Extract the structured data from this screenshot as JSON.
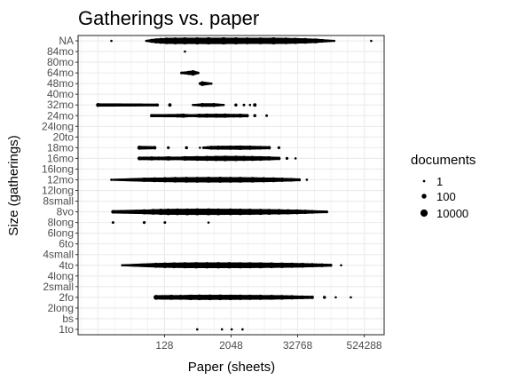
{
  "chart_data": {
    "type": "scatter",
    "title": "Gatherings vs. paper",
    "xlabel": "Paper (sheets)",
    "ylabel": "Size (gatherings)",
    "x_scale": "log2",
    "xlim": [
      3.5,
      1200000
    ],
    "x_ticks": [
      128,
      2048,
      32768,
      524288
    ],
    "x_tick_labels": [
      "128",
      "2048",
      "32768",
      "524288"
    ],
    "categories": [
      "1to",
      "bs",
      "2long",
      "2fo",
      "2small",
      "4long",
      "4to",
      "4small",
      "6to",
      "6long",
      "8long",
      "8vo",
      "8small",
      "12long",
      "12mo",
      "16long",
      "16mo",
      "18mo",
      "20to",
      "24long",
      "24mo",
      "32mo",
      "40mo",
      "48mo",
      "64mo",
      "80mo",
      "84mo",
      "NA"
    ],
    "grid": true,
    "legend": {
      "title": "documents",
      "position": "right",
      "items": [
        {
          "label": "1",
          "value": 1
        },
        {
          "label": "100",
          "value": 100
        },
        {
          "label": "10000",
          "value": 10000
        }
      ]
    },
    "series": [
      {
        "category": "NA",
        "points": [
          [
            14,
            1
          ],
          [
            60,
            1
          ],
          [
            75,
            30
          ],
          [
            90,
            300
          ],
          [
            110,
            1500
          ],
          [
            140,
            6000
          ],
          [
            200,
            12000
          ],
          [
            300,
            15000
          ],
          [
            500,
            18000
          ],
          [
            800,
            20000
          ],
          [
            1500,
            20000
          ],
          [
            2500,
            15000
          ],
          [
            4000,
            10000
          ],
          [
            7000,
            8000
          ],
          [
            12000,
            15000
          ],
          [
            20000,
            6000
          ],
          [
            30000,
            3000
          ],
          [
            45000,
            1000
          ],
          [
            70000,
            200
          ],
          [
            90000,
            20
          ],
          [
            150000,
            1
          ],
          [
            700000,
            1
          ]
        ]
      },
      {
        "category": "84mo",
        "points": [
          [
            300,
            1
          ]
        ]
      },
      {
        "category": "64mo",
        "points": [
          [
            260,
            2
          ],
          [
            350,
            40
          ],
          [
            420,
            600
          ],
          [
            520,
            2
          ]
        ]
      },
      {
        "category": "48mo",
        "points": [
          [
            560,
            2
          ],
          [
            620,
            150
          ],
          [
            900,
            1
          ]
        ]
      },
      {
        "category": "32mo",
        "points": [
          [
            8,
            20
          ],
          [
            95,
            5
          ],
          [
            160,
            10
          ],
          [
            420,
            1
          ],
          [
            620,
            25
          ],
          [
            1000,
            30
          ],
          [
            1500,
            1
          ],
          [
            2500,
            5
          ],
          [
            3500,
            2
          ],
          [
            4500,
            1
          ],
          [
            5500,
            10
          ]
        ]
      },
      {
        "category": "24mo",
        "points": [
          [
            75,
            8
          ],
          [
            220,
            20
          ],
          [
            280,
            50
          ],
          [
            380,
            5
          ],
          [
            550,
            30
          ],
          [
            750,
            40
          ],
          [
            1100,
            50
          ],
          [
            1600,
            60
          ],
          [
            2300,
            20
          ],
          [
            3000,
            30
          ],
          [
            4000,
            10
          ],
          [
            5500,
            5
          ],
          [
            9000,
            2
          ]
        ]
      },
      {
        "category": "18mo",
        "points": [
          [
            45,
            40
          ],
          [
            85,
            10
          ],
          [
            150,
            3
          ],
          [
            320,
            5
          ],
          [
            560,
            1
          ],
          [
            650,
            2
          ],
          [
            900,
            30
          ],
          [
            1200,
            50
          ],
          [
            2000,
            80
          ],
          [
            3000,
            100
          ],
          [
            4500,
            60
          ],
          [
            7000,
            20
          ],
          [
            10000,
            10
          ],
          [
            15000,
            3
          ]
        ]
      },
      {
        "category": "16mo",
        "points": [
          [
            45,
            20
          ],
          [
            75,
            40
          ],
          [
            100,
            20
          ],
          [
            150,
            60
          ],
          [
            220,
            20
          ],
          [
            300,
            100
          ],
          [
            500,
            200
          ],
          [
            750,
            300
          ],
          [
            1100,
            500
          ],
          [
            1600,
            800
          ],
          [
            2500,
            600
          ],
          [
            3500,
            400
          ],
          [
            5000,
            300
          ],
          [
            7000,
            150
          ],
          [
            10000,
            60
          ],
          [
            15000,
            10
          ],
          [
            21000,
            3
          ],
          [
            30000,
            1
          ]
        ]
      },
      {
        "category": "12mo",
        "points": [
          [
            14,
            1
          ],
          [
            55,
            80
          ],
          [
            85,
            200
          ],
          [
            130,
            400
          ],
          [
            200,
            800
          ],
          [
            320,
            1200
          ],
          [
            500,
            1500
          ],
          [
            800,
            2000
          ],
          [
            1300,
            2000
          ],
          [
            2000,
            1500
          ],
          [
            3000,
            1200
          ],
          [
            5000,
            800
          ],
          [
            8000,
            400
          ],
          [
            12000,
            200
          ],
          [
            17000,
            60
          ],
          [
            25000,
            20
          ],
          [
            35000,
            5
          ],
          [
            48000,
            1
          ]
        ]
      },
      {
        "category": "8vo",
        "points": [
          [
            15,
            15
          ],
          [
            55,
            300
          ],
          [
            80,
            1200
          ],
          [
            110,
            3000
          ],
          [
            150,
            6000
          ],
          [
            220,
            8000
          ],
          [
            330,
            10000
          ],
          [
            500,
            12000
          ],
          [
            800,
            12000
          ],
          [
            1200,
            10000
          ],
          [
            2000,
            8000
          ],
          [
            3000,
            6000
          ],
          [
            4500,
            4000
          ],
          [
            7000,
            2500
          ],
          [
            10000,
            1500
          ],
          [
            15000,
            800
          ],
          [
            22000,
            400
          ],
          [
            32000,
            200
          ],
          [
            45000,
            60
          ],
          [
            60000,
            20
          ],
          [
            110000,
            3
          ]
        ]
      },
      {
        "category": "8long",
        "points": [
          [
            15,
            2
          ],
          [
            55,
            3
          ],
          [
            130,
            2
          ],
          [
            800,
            1
          ]
        ]
      },
      {
        "category": "4to",
        "points": [
          [
            22,
            1
          ],
          [
            90,
            300
          ],
          [
            130,
            800
          ],
          [
            190,
            1500
          ],
          [
            300,
            2500
          ],
          [
            480,
            3500
          ],
          [
            750,
            4000
          ],
          [
            1200,
            4000
          ],
          [
            1900,
            3500
          ],
          [
            3000,
            3000
          ],
          [
            4500,
            2500
          ],
          [
            7000,
            2000
          ],
          [
            11000,
            1200
          ],
          [
            17000,
            800
          ],
          [
            26000,
            400
          ],
          [
            40000,
            200
          ],
          [
            60000,
            60
          ],
          [
            90000,
            20
          ],
          [
            130000,
            5
          ],
          [
            200000,
            1
          ]
        ]
      },
      {
        "category": "2fo",
        "points": [
          [
            90,
            200
          ],
          [
            170,
            400
          ],
          [
            250,
            300
          ],
          [
            380,
            800
          ],
          [
            550,
            1000
          ],
          [
            850,
            1000
          ],
          [
            1300,
            900
          ],
          [
            2000,
            800
          ],
          [
            3000,
            600
          ],
          [
            4500,
            500
          ],
          [
            7000,
            400
          ],
          [
            11000,
            300
          ],
          [
            17000,
            150
          ],
          [
            26000,
            60
          ],
          [
            40000,
            20
          ],
          [
            60000,
            10
          ],
          [
            100000,
            5
          ],
          [
            160000,
            1
          ],
          [
            300000,
            1
          ]
        ]
      },
      {
        "category": "1to",
        "points": [
          [
            500,
            1
          ],
          [
            1400,
            1
          ],
          [
            2100,
            1
          ],
          [
            3300,
            1
          ]
        ]
      }
    ]
  }
}
